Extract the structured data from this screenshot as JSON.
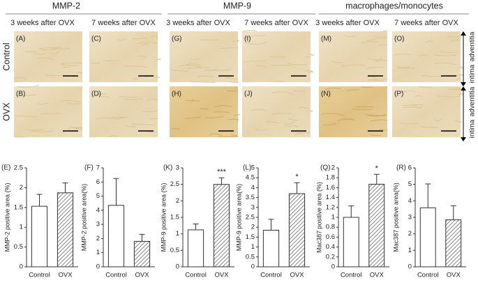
{
  "headers": [
    "MMP-2",
    "MMP-9",
    "macrophages/monocytes"
  ],
  "subheaders": [
    "3 weeks after OVX",
    "7 weeks after OVX",
    "3 weeks after OVX",
    "7 weeks after OVX",
    "3 weeks after OVX",
    "7 weeks after OVX"
  ],
  "row_labels": [
    "Control",
    "OVX"
  ],
  "panels": [
    [
      "(A)",
      "(C)",
      "(G)",
      "(I)",
      "(M)",
      "(O)"
    ],
    [
      "(B)",
      "(D)",
      "(H)",
      "(J)",
      "(N)",
      "(P)"
    ]
  ],
  "side_labels": [
    "adventitia",
    "intima"
  ],
  "chart_data": [
    {
      "type": "bar",
      "panel": "(E)",
      "ylabel": "MMP-2 positive area (%)",
      "categories": [
        "Control",
        "OVX"
      ],
      "values": [
        1.53,
        1.87
      ],
      "errors": [
        0.3,
        0.25
      ],
      "hatch": [
        false,
        true
      ],
      "ylim": [
        0,
        2.5
      ],
      "yticks": [
        0,
        0.5,
        1,
        1.5,
        2,
        2.5
      ]
    },
    {
      "type": "bar",
      "panel": "(F)",
      "ylabel": "MMP-2 positive area(%)",
      "categories": [
        "Control",
        "OVX"
      ],
      "values": [
        4.35,
        1.8
      ],
      "errors": [
        1.9,
        0.5
      ],
      "hatch": [
        false,
        true
      ],
      "ylim": [
        0,
        7
      ],
      "yticks": [
        0,
        1,
        2,
        3,
        4,
        5,
        6,
        7
      ]
    },
    {
      "type": "bar",
      "panel": "(K)",
      "ylabel": "MMP-9 positive area (%)",
      "categories": [
        "Control",
        "OVX"
      ],
      "values": [
        1.12,
        2.5
      ],
      "errors": [
        0.18,
        0.2
      ],
      "hatch": [
        false,
        true
      ],
      "ylim": [
        0,
        3
      ],
      "yticks": [
        0,
        0.5,
        1,
        1.5,
        2,
        2.5,
        3
      ],
      "annotations": [
        {
          "text": "***",
          "category": "OVX"
        }
      ]
    },
    {
      "type": "bar",
      "panel": "(L)",
      "ylabel": "MMP-9 positive area(%)",
      "categories": [
        "Control",
        "OVX"
      ],
      "values": [
        1.85,
        3.7
      ],
      "errors": [
        0.55,
        0.55
      ],
      "hatch": [
        false,
        true
      ],
      "ylim": [
        0,
        5
      ],
      "yticks": [
        0,
        0.5,
        1,
        1.5,
        2,
        2.5,
        3,
        3.5,
        4,
        4.5,
        5
      ],
      "annotations": [
        {
          "text": "*",
          "category": "OVX"
        }
      ]
    },
    {
      "type": "bar",
      "panel": "(Q)",
      "ylabel": "Mac387 positive area (%)",
      "categories": [
        "Control",
        "OVX"
      ],
      "values": [
        1.0,
        1.67
      ],
      "errors": [
        0.23,
        0.2
      ],
      "hatch": [
        false,
        true
      ],
      "ylim": [
        0,
        2
      ],
      "yticks": [
        0,
        0.2,
        0.4,
        0.6,
        0.8,
        1,
        1.2,
        1.4,
        1.6,
        1.8,
        2
      ],
      "annotations": [
        {
          "text": "*",
          "category": "OVX"
        }
      ]
    },
    {
      "type": "bar",
      "panel": "(R)",
      "ylabel": "Mac387 positive area(%)",
      "categories": [
        "Control",
        "OVX"
      ],
      "values": [
        3.58,
        2.85
      ],
      "errors": [
        1.45,
        0.85
      ],
      "hatch": [
        false,
        true
      ],
      "ylim": [
        0,
        6
      ],
      "yticks": [
        0,
        1,
        2,
        3,
        4,
        5,
        6
      ]
    }
  ]
}
